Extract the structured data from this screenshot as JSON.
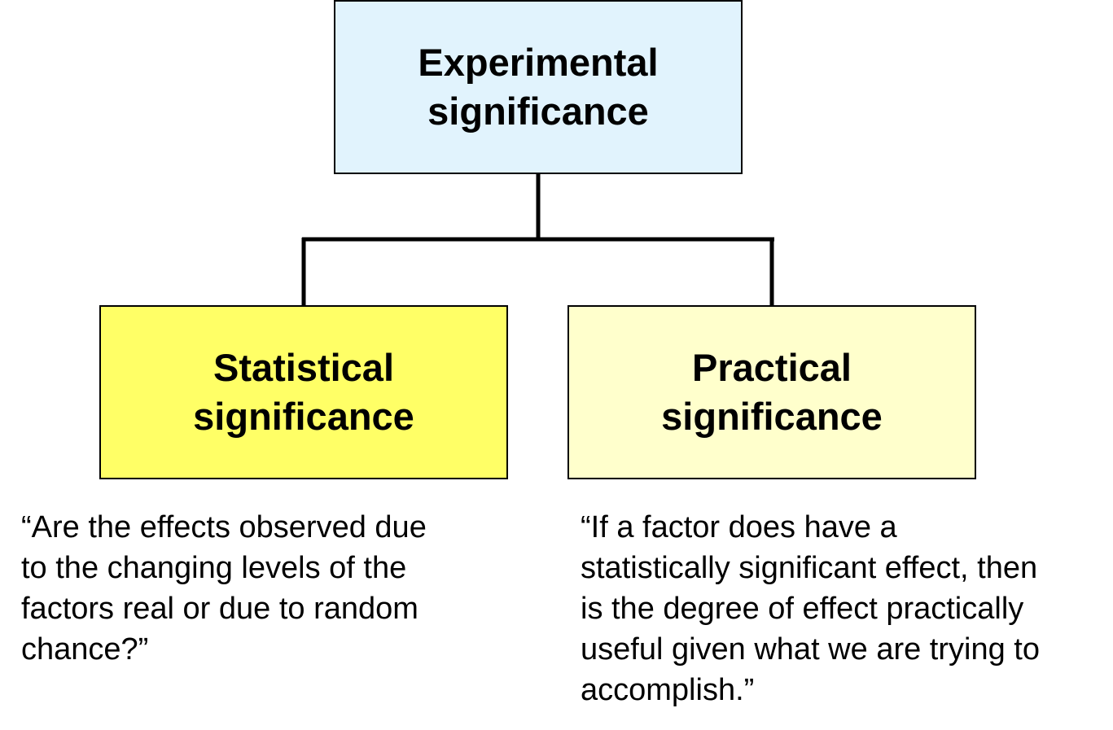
{
  "colors": {
    "top_fill": "#e1f3fd",
    "left_fill": "#ffff66",
    "right_fill": "#ffffcc",
    "border": "#000000",
    "connector": "#000000"
  },
  "nodes": {
    "top": {
      "lines": [
        "Experimental",
        "significance"
      ]
    },
    "left": {
      "lines": [
        "Statistical",
        "significance"
      ]
    },
    "right": {
      "lines": [
        "Practical",
        "significance"
      ]
    }
  },
  "quotes": {
    "left": {
      "lines": [
        "“Are the effects observed due",
        "to the changing levels of the",
        "factors real or due to random",
        "chance?”"
      ]
    },
    "right": {
      "lines": [
        "“If a factor does have a",
        "statistically significant effect, then",
        "is the degree of effect practically",
        "useful given what we are trying to",
        "accomplish.”"
      ]
    }
  },
  "edges": [
    {
      "from": "top",
      "to": "left"
    },
    {
      "from": "top",
      "to": "right"
    }
  ]
}
